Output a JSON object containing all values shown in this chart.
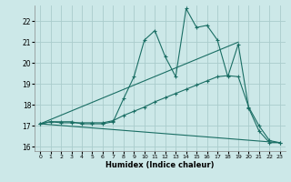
{
  "xlabel": "Humidex (Indice chaleur)",
  "xlim": [
    -0.5,
    23.5
  ],
  "ylim": [
    15.8,
    22.75
  ],
  "yticks": [
    16,
    17,
    18,
    19,
    20,
    21,
    22
  ],
  "xticks": [
    0,
    1,
    2,
    3,
    4,
    5,
    6,
    7,
    8,
    9,
    10,
    11,
    12,
    13,
    14,
    15,
    16,
    17,
    18,
    19,
    20,
    21,
    22,
    23
  ],
  "bg_color": "#cce8e8",
  "grid_color": "#aacccc",
  "line_color": "#1a6e64",
  "series_with_markers": [
    {
      "x": [
        0,
        1,
        2,
        3,
        4,
        5,
        6,
        7,
        8,
        9,
        10,
        11,
        12,
        13,
        14,
        15,
        16,
        17,
        18,
        19,
        20,
        21,
        22,
        23
      ],
      "y": [
        17.1,
        17.2,
        17.2,
        17.2,
        17.1,
        17.1,
        17.1,
        17.2,
        18.3,
        19.35,
        21.1,
        21.55,
        20.3,
        19.35,
        22.6,
        21.7,
        21.8,
        21.1,
        19.35,
        20.9,
        17.85,
        16.75,
        16.2,
        16.2
      ]
    },
    {
      "x": [
        0,
        1,
        2,
        3,
        4,
        5,
        6,
        7,
        8,
        9,
        10,
        11,
        12,
        13,
        14,
        15,
        16,
        17,
        18,
        19,
        20,
        21,
        22,
        23
      ],
      "y": [
        17.1,
        17.2,
        17.15,
        17.15,
        17.15,
        17.15,
        17.15,
        17.25,
        17.5,
        17.7,
        17.9,
        18.15,
        18.35,
        18.55,
        18.75,
        18.95,
        19.15,
        19.35,
        19.4,
        19.35,
        17.9,
        17.0,
        16.3,
        16.2
      ]
    }
  ],
  "series_lines": [
    {
      "x": [
        0,
        19
      ],
      "y": [
        17.1,
        21.0
      ]
    },
    {
      "x": [
        0,
        23
      ],
      "y": [
        17.1,
        16.2
      ]
    }
  ]
}
